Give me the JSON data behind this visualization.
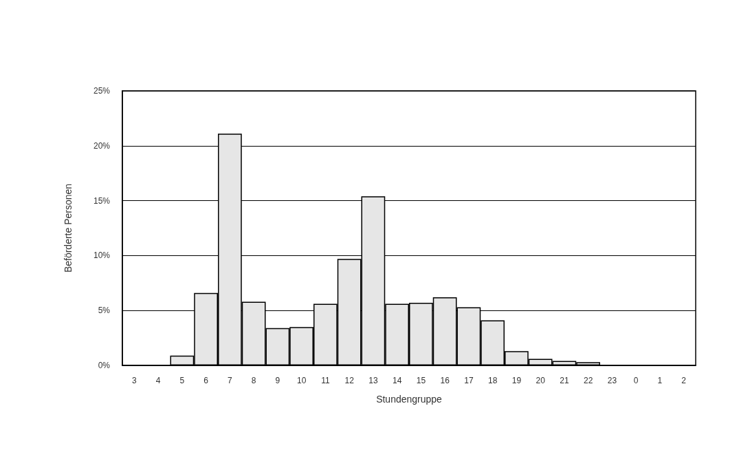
{
  "chart_data": {
    "type": "bar",
    "xlabel": "Stundengruppe",
    "ylabel": "Beförderte Personen",
    "categories": [
      "3",
      "4",
      "5",
      "6",
      "7",
      "8",
      "9",
      "10",
      "11",
      "12",
      "13",
      "14",
      "15",
      "16",
      "17",
      "18",
      "19",
      "20",
      "21",
      "22",
      "23",
      "0",
      "1",
      "2"
    ],
    "values": [
      0,
      0,
      0.9,
      6.6,
      21.1,
      5.8,
      3.4,
      3.5,
      5.6,
      9.7,
      15.4,
      5.6,
      5.7,
      6.2,
      5.3,
      4.1,
      1.3,
      0.6,
      0.4,
      0.3,
      0,
      0,
      0,
      0
    ],
    "color": "#e6e6e6",
    "ylim": [
      0,
      25
    ],
    "yticks": [
      {
        "value": 0,
        "label": "0%"
      },
      {
        "value": 5,
        "label": "5%"
      },
      {
        "value": 10,
        "label": "10%"
      },
      {
        "value": 15,
        "label": "15%"
      },
      {
        "value": 20,
        "label": "20%"
      },
      {
        "value": 25,
        "label": "25%"
      }
    ],
    "grid": "y"
  }
}
